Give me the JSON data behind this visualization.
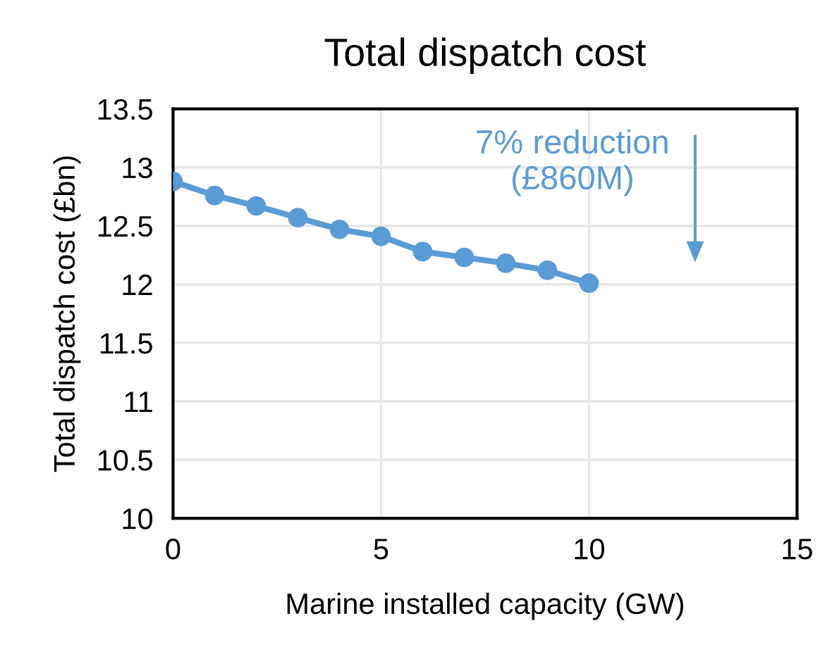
{
  "chart_data": {
    "type": "line",
    "title": "Total dispatch cost",
    "xlabel": "Marine installed capacity (GW)",
    "ylabel": "Total dispatch cost (£bn)",
    "x": [
      0,
      1,
      2,
      3,
      4,
      5,
      6,
      7,
      8,
      9,
      10
    ],
    "series": [
      {
        "color": "#5b9bd5",
        "values": [
          12.88,
          12.76,
          12.67,
          12.57,
          12.47,
          12.41,
          12.28,
          12.23,
          12.18,
          12.12,
          12.01
        ]
      }
    ],
    "xlim": [
      0,
      15
    ],
    "xticks": [
      0,
      5,
      10,
      15
    ],
    "ylim": [
      10,
      13.5
    ],
    "yticks": [
      10,
      10.5,
      11,
      11.5,
      12,
      12.5,
      13,
      13.5
    ],
    "grid": true,
    "marker": "circle",
    "line_style": "solid",
    "annotations": [
      "7% reduction\n(£860M)"
    ]
  }
}
